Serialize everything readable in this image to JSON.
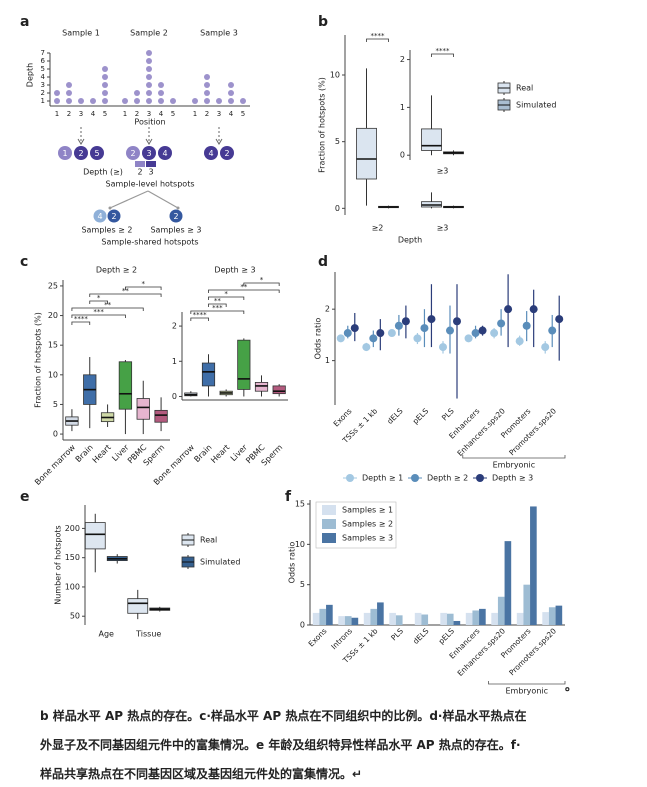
{
  "diagram": {
    "label": "a",
    "ylabel": "Depth",
    "xlabel": "Position",
    "yticks": [
      1,
      2,
      3,
      4,
      5,
      6,
      7
    ],
    "positions": [
      1,
      2,
      3,
      4,
      5
    ],
    "samples": [
      {
        "title": "Sample 1",
        "depths": [
          2,
          3,
          1,
          1,
          5
        ],
        "hotspots": [
          1,
          2,
          5
        ]
      },
      {
        "title": "Sample 2",
        "depths": [
          1,
          2,
          7,
          3,
          1
        ],
        "hotspots": [
          2,
          3,
          4
        ]
      },
      {
        "title": "Sample 3",
        "depths": [
          1,
          4,
          1,
          3,
          1
        ],
        "hotspots": [
          4,
          2
        ]
      }
    ],
    "depth_legend": {
      "title": "Depth (≥)",
      "levels": [
        2,
        3
      ],
      "colors": [
        "#8f84c6",
        "#463a94"
      ]
    },
    "sample_level_title": "Sample-level hotspots",
    "shared": [
      {
        "label": "Samples ≥ 2",
        "items": [
          4,
          2
        ]
      },
      {
        "label": "Samples ≥ 3",
        "items": [
          2
        ]
      }
    ],
    "shared_colors": [
      "#8fb0d8",
      "#34589f"
    ],
    "shared_title": "Sample-shared hotspots",
    "dot_color": "#9d92cc"
  },
  "chart_data": [
    {
      "type": "box",
      "label": "b",
      "ylabel": "Fraction of hotspots (%)",
      "xlabel": "Depth",
      "categories": [
        "≥2",
        "≥3"
      ],
      "series": [
        {
          "name": "Real",
          "color": "#dbe5f0",
          "values": [
            {
              "min": 0.2,
              "q1": 2.2,
              "median": 3.7,
              "q3": 6.0,
              "max": 10.5
            },
            {
              "min": 0,
              "q1": 0.1,
              "median": 0.25,
              "q3": 0.5,
              "max": 1.2
            }
          ]
        },
        {
          "name": "Simulated",
          "color": "#a9bdd1",
          "values": [
            {
              "min": 0,
              "q1": 0.05,
              "median": 0.1,
              "q3": 0.15,
              "max": 0.2
            },
            {
              "min": 0,
              "q1": 0.05,
              "median": 0.1,
              "q3": 0.15,
              "max": 0.2
            }
          ]
        }
      ],
      "ylim": [
        -0.5,
        13
      ],
      "yticks": [
        0,
        5,
        10
      ],
      "brackets": [
        {
          "label": "****",
          "category": 0
        }
      ],
      "inset": {
        "categories": [
          "≥3"
        ],
        "series": [
          {
            "values": [
              {
                "min": 0,
                "q1": 0.1,
                "median": 0.2,
                "q3": 0.55,
                "max": 1.25
              }
            ]
          },
          {
            "values": [
              {
                "min": 0,
                "q1": 0.03,
                "median": 0.05,
                "q3": 0.07,
                "max": 0.1
              }
            ]
          }
        ],
        "ylim": [
          -0.1,
          2.2
        ],
        "yticks": [
          0,
          1,
          2
        ],
        "brackets": [
          {
            "label": "****",
            "category": 0
          }
        ]
      }
    },
    {
      "type": "box",
      "label": "c",
      "ylabel": "Fraction of hotspots (%)",
      "categories": [
        "Bone marrow",
        "Brain",
        "Heart",
        "Liver",
        "PBMC",
        "Sperm"
      ],
      "colors": [
        "#d3dbe6",
        "#3f6ea8",
        "#cfd9a6",
        "#46a146",
        "#e6b5cf",
        "#b35a7e"
      ],
      "facets": [
        {
          "title": "Depth ≥ 2",
          "ylim": [
            -1,
            26
          ],
          "yticks": [
            0,
            5,
            10,
            15,
            20,
            25
          ],
          "values": [
            {
              "min": 0.5,
              "q1": 1.5,
              "median": 2.2,
              "q3": 2.9,
              "max": 4.2
            },
            {
              "min": 1,
              "q1": 5,
              "median": 7.5,
              "q3": 10,
              "max": 13
            },
            {
              "min": 1.2,
              "q1": 2.1,
              "median": 2.8,
              "q3": 3.6,
              "max": 5
            },
            {
              "min": 0,
              "q1": 4.2,
              "median": 6.8,
              "q3": 12.2,
              "max": 12.5
            },
            {
              "min": 0,
              "q1": 2.5,
              "median": 4.5,
              "q3": 6,
              "max": 9
            },
            {
              "min": 0.5,
              "q1": 2,
              "median": 3.2,
              "q3": 4,
              "max": 6.2
            }
          ],
          "brackets": [
            {
              "label": "****",
              "groups": [
                0,
                1
              ]
            },
            {
              "label": "***",
              "groups": [
                0,
                3
              ]
            },
            {
              "label": "**",
              "groups": [
                0,
                4
              ]
            },
            {
              "label": "*",
              "groups": [
                1,
                2
              ]
            },
            {
              "label": "**",
              "groups": [
                1,
                5
              ]
            },
            {
              "label": "*",
              "groups": [
                3,
                5
              ]
            }
          ]
        },
        {
          "title": "Depth ≥ 3",
          "ylim": [
            -0.1,
            2.4
          ],
          "yticks": [
            0,
            1,
            2
          ],
          "values": [
            {
              "min": 0,
              "q1": 0.02,
              "median": 0.05,
              "q3": 0.1,
              "max": 0.15
            },
            {
              "min": 0,
              "q1": 0.3,
              "median": 0.7,
              "q3": 0.95,
              "max": 1.2
            },
            {
              "min": 0,
              "q1": 0.05,
              "median": 0.1,
              "q3": 0.15,
              "max": 0.2
            },
            {
              "min": 0,
              "q1": 0.2,
              "median": 0.5,
              "q3": 1.6,
              "max": 1.65
            },
            {
              "min": 0,
              "q1": 0.15,
              "median": 0.3,
              "q3": 0.4,
              "max": 0.6
            },
            {
              "min": 0,
              "q1": 0.08,
              "median": 0.15,
              "q3": 0.3,
              "max": 0.35
            }
          ],
          "brackets": [
            {
              "label": "****",
              "groups": [
                0,
                1
              ]
            },
            {
              "label": "***",
              "groups": [
                0,
                3
              ]
            },
            {
              "label": "**",
              "groups": [
                1,
                2
              ]
            },
            {
              "label": "*",
              "groups": [
                1,
                3
              ]
            },
            {
              "label": "**",
              "groups": [
                1,
                5
              ]
            },
            {
              "label": "*",
              "groups": [
                3,
                5
              ]
            }
          ]
        }
      ]
    },
    {
      "type": "pointrange",
      "label": "d",
      "ylabel": "Odds ratio",
      "log": true,
      "ylim": [
        0.55,
        3.3
      ],
      "yticks": [
        1,
        2
      ],
      "categories": [
        "Exons",
        "TSSs ± 1 kb",
        "dELS",
        "pELS",
        "PLS",
        "Enhancers",
        "Enhancers.sps20",
        "Promoters",
        "Promoters.sps20"
      ],
      "group": {
        "label": "Embryonic",
        "span": [
          5,
          8
        ]
      },
      "series": [
        {
          "name": "Depth ≥ 1",
          "color": "#a3c8e2",
          "values": [
            1.35,
            1.2,
            1.45,
            1.35,
            1.2,
            1.35,
            1.45,
            1.3,
            1.2
          ],
          "lower": [
            1.3,
            1.15,
            1.4,
            1.25,
            1.1,
            1.3,
            1.35,
            1.22,
            1.1
          ],
          "upper": [
            1.42,
            1.27,
            1.52,
            1.45,
            1.3,
            1.42,
            1.55,
            1.4,
            1.3
          ]
        },
        {
          "name": "Depth ≥ 2",
          "color": "#5a8dba",
          "values": [
            1.45,
            1.35,
            1.6,
            1.55,
            1.5,
            1.45,
            1.65,
            1.6,
            1.5
          ],
          "lower": [
            1.35,
            1.2,
            1.4,
            1.2,
            1.1,
            1.35,
            1.4,
            1.3,
            1.2
          ],
          "upper": [
            1.6,
            1.5,
            1.85,
            2.0,
            2.1,
            1.6,
            2.0,
            1.95,
            1.85
          ]
        },
        {
          "name": "Depth ≥ 3",
          "color": "#2b3d7a",
          "values": [
            1.55,
            1.45,
            1.7,
            1.75,
            1.7,
            1.5,
            2.0,
            2.0,
            1.75
          ],
          "lower": [
            1.3,
            1.15,
            1.35,
            1.2,
            0.6,
            1.4,
            1.2,
            1.2,
            1.0
          ],
          "upper": [
            1.9,
            1.75,
            2.1,
            2.8,
            2.8,
            1.6,
            3.2,
            2.6,
            2.4
          ]
        }
      ]
    },
    {
      "type": "box",
      "label": "e",
      "ylabel": "Number of hotspots",
      "categories": [
        "Age",
        "Tissue"
      ],
      "series": [
        {
          "name": "Real",
          "color": "#dde6f0",
          "values": [
            {
              "min": 125,
              "q1": 165,
              "median": 190,
              "q3": 210,
              "max": 225
            },
            {
              "min": 45,
              "q1": 55,
              "median": 72,
              "q3": 80,
              "max": 95
            }
          ]
        },
        {
          "name": "Simulated",
          "color": "#35608f",
          "values": [
            {
              "min": 140,
              "q1": 145,
              "median": 148,
              "q3": 152,
              "max": 156
            },
            {
              "min": 58,
              "q1": 60,
              "median": 62,
              "q3": 64,
              "max": 66
            }
          ]
        }
      ],
      "ylim": [
        35,
        240
      ],
      "yticks": [
        50,
        100,
        150,
        200
      ]
    },
    {
      "type": "bar",
      "label": "f",
      "ylabel": "Odds ratio",
      "ylim": [
        0,
        15.5
      ],
      "yticks": [
        0,
        5,
        10,
        15
      ],
      "categories": [
        "Exons",
        "Introns",
        "TSSs ± 1 kb",
        "PLS",
        "dELS",
        "pELS",
        "Enhancers",
        "Enhancers.sps20",
        "Promoters",
        "Promoters.sps20"
      ],
      "group": {
        "label": "Embryonic",
        "span": [
          7,
          9
        ]
      },
      "series": [
        {
          "name": "Samples ≥ 1",
          "color": "#d5e1ef",
          "values": [
            1.5,
            1.1,
            1.5,
            1.5,
            1.5,
            1.5,
            1.5,
            1.5,
            1.5,
            1.6
          ]
        },
        {
          "name": "Samples ≥ 2",
          "color": "#9dbcd3",
          "values": [
            2.0,
            1.1,
            2.0,
            1.2,
            1.3,
            1.4,
            1.8,
            3.5,
            5.0,
            2.2
          ]
        },
        {
          "name": "Samples ≥ 3",
          "color": "#4a74a3",
          "values": [
            2.5,
            0.9,
            2.8,
            0,
            0,
            0.5,
            2.0,
            10.4,
            14.7,
            2.4
          ]
        }
      ]
    }
  ],
  "caption_mark": "。",
  "caption": [
    "b 样品水平 AP 热点的存在。c·样品水平 AP 热点在不同组织中的比例。d·样品水平热点在",
    "外显子及不同基因组元件中的富集情况。e 年龄及组织特异性样品水平 AP  热点的存在。f·",
    "样品共享热点在不同基因区域及基因组元件处的富集情况。↵"
  ]
}
